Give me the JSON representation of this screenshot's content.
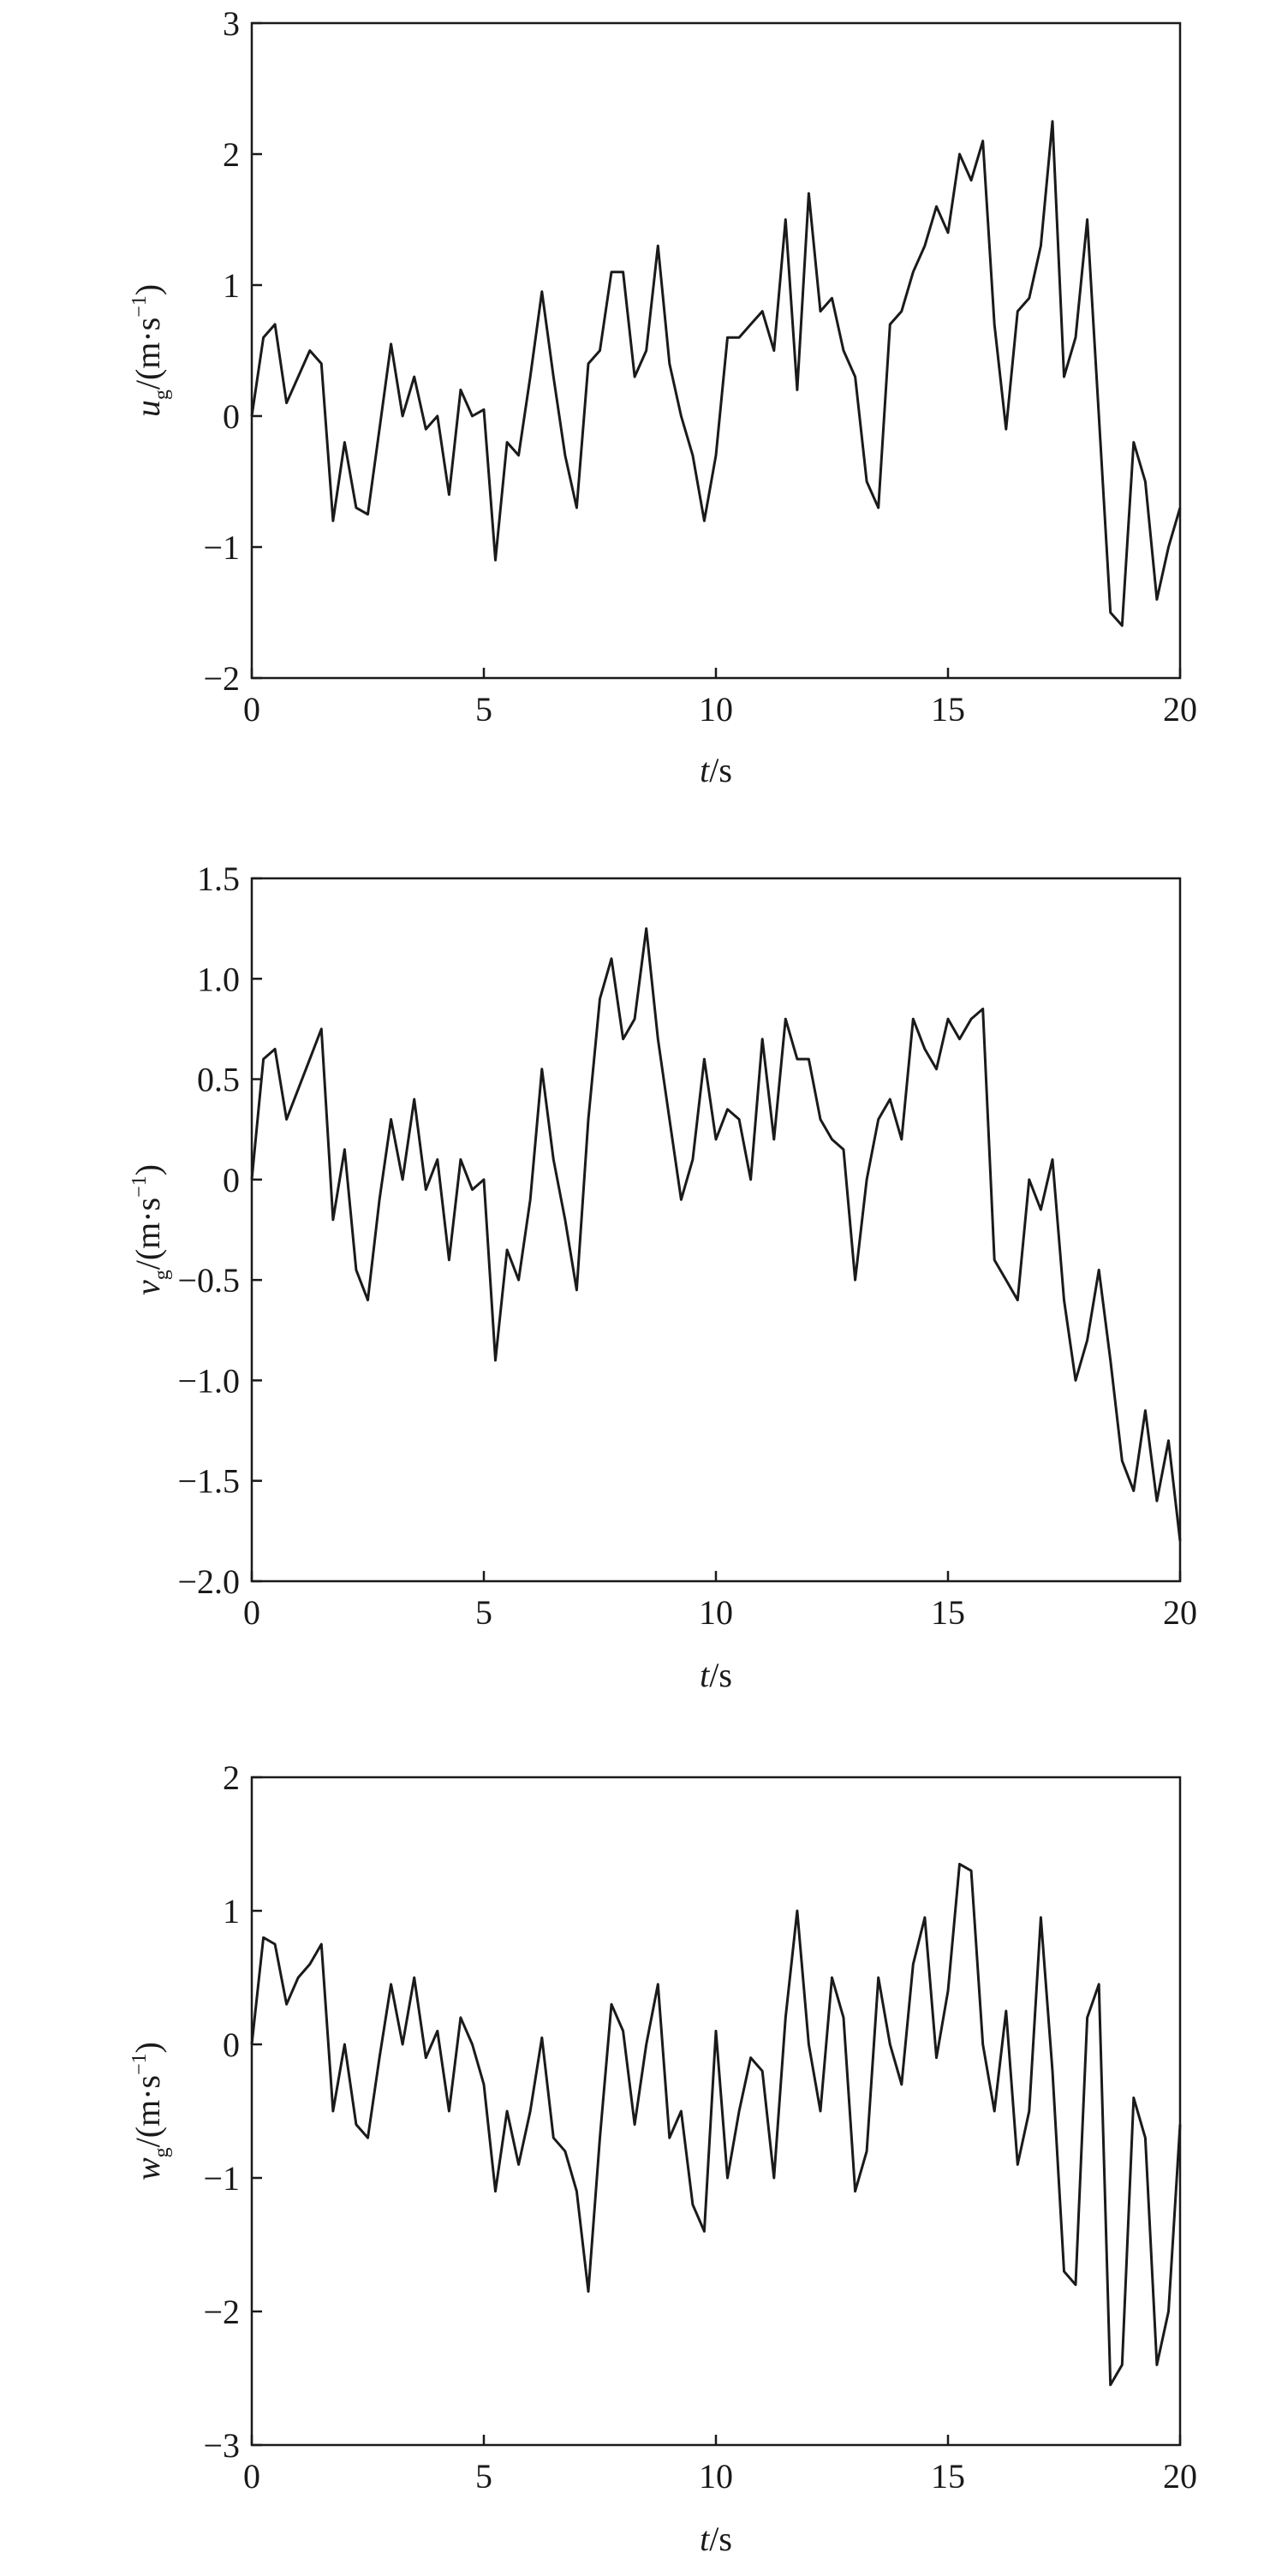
{
  "chart_data": [
    {
      "type": "line",
      "color": "#1a1a1a",
      "ylabel": [
        "u",
        "g",
        "/(m·s",
        "−1",
        ")"
      ],
      "xlabel": [
        "t",
        "/s"
      ],
      "x": [
        0,
        0.25,
        0.5,
        0.75,
        1,
        1.25,
        1.5,
        1.75,
        2,
        2.25,
        2.5,
        2.75,
        3,
        3.25,
        3.5,
        3.75,
        4,
        4.25,
        4.5,
        4.75,
        5,
        5.25,
        5.5,
        5.75,
        6,
        6.25,
        6.5,
        6.75,
        7,
        7.25,
        7.5,
        7.75,
        8,
        8.25,
        8.5,
        8.75,
        9,
        9.25,
        9.5,
        9.75,
        10,
        10.25,
        10.5,
        10.75,
        11,
        11.25,
        11.5,
        11.75,
        12,
        12.25,
        12.5,
        12.75,
        13,
        13.25,
        13.5,
        13.75,
        14,
        14.25,
        14.5,
        14.75,
        15,
        15.25,
        15.5,
        15.75,
        16,
        16.25,
        16.5,
        16.75,
        17,
        17.25,
        17.5,
        17.75,
        18,
        18.25,
        18.5,
        18.75,
        19,
        19.25,
        19.5,
        19.75,
        20
      ],
      "values": [
        0.0,
        0.6,
        0.7,
        0.1,
        0.3,
        0.5,
        0.4,
        -0.8,
        -0.2,
        -0.7,
        -0.75,
        -0.1,
        0.55,
        0.0,
        0.3,
        -0.1,
        0.0,
        -0.6,
        0.2,
        0.0,
        0.05,
        -1.1,
        -0.2,
        -0.3,
        0.3,
        0.95,
        0.3,
        -0.3,
        -0.7,
        0.4,
        0.5,
        1.1,
        1.1,
        0.3,
        0.5,
        1.3,
        0.4,
        0.0,
        -0.3,
        -0.8,
        -0.3,
        0.6,
        0.6,
        0.7,
        0.8,
        0.5,
        1.5,
        0.2,
        1.7,
        0.8,
        0.9,
        0.5,
        0.3,
        -0.5,
        -0.7,
        0.7,
        0.8,
        1.1,
        1.3,
        1.6,
        1.4,
        2.0,
        1.8,
        2.1,
        0.7,
        -0.1,
        0.8,
        0.9,
        1.3,
        2.25,
        0.3,
        0.6,
        1.5,
        0.0,
        -1.5,
        -1.6,
        -0.2,
        -0.5,
        -1.4,
        -1.0,
        -0.7
      ],
      "xlim": [
        0,
        20
      ],
      "xticks": [
        0,
        5,
        10,
        15,
        20
      ],
      "ylim": [
        -2,
        3
      ],
      "yticks": [
        {
          "value": -2,
          "label": "−2"
        },
        {
          "value": -1,
          "label": "−1"
        },
        0,
        1,
        2,
        3
      ]
    },
    {
      "type": "line",
      "color": "#1a1a1a",
      "ylabel": [
        "v",
        "g",
        "/(m·s",
        "−1",
        ")"
      ],
      "xlabel": [
        "t",
        "/s"
      ],
      "x": [
        0,
        0.25,
        0.5,
        0.75,
        1,
        1.25,
        1.5,
        1.75,
        2,
        2.25,
        2.5,
        2.75,
        3,
        3.25,
        3.5,
        3.75,
        4,
        4.25,
        4.5,
        4.75,
        5,
        5.25,
        5.5,
        5.75,
        6,
        6.25,
        6.5,
        6.75,
        7,
        7.25,
        7.5,
        7.75,
        8,
        8.25,
        8.5,
        8.75,
        9,
        9.25,
        9.5,
        9.75,
        10,
        10.25,
        10.5,
        10.75,
        11,
        11.25,
        11.5,
        11.75,
        12,
        12.25,
        12.5,
        12.75,
        13,
        13.25,
        13.5,
        13.75,
        14,
        14.25,
        14.5,
        14.75,
        15,
        15.25,
        15.5,
        15.75,
        16,
        16.25,
        16.5,
        16.75,
        17,
        17.25,
        17.5,
        17.75,
        18,
        18.25,
        18.5,
        18.75,
        19,
        19.25,
        19.5,
        19.75,
        20
      ],
      "values": [
        0.0,
        0.6,
        0.65,
        0.3,
        0.45,
        0.6,
        0.75,
        -0.2,
        0.15,
        -0.45,
        -0.6,
        -0.1,
        0.3,
        0.0,
        0.4,
        -0.05,
        0.1,
        -0.4,
        0.1,
        -0.05,
        0.0,
        -0.9,
        -0.35,
        -0.5,
        -0.1,
        0.55,
        0.1,
        -0.2,
        -0.55,
        0.3,
        0.9,
        1.1,
        0.7,
        0.8,
        1.25,
        0.7,
        0.3,
        -0.1,
        0.1,
        0.6,
        0.2,
        0.35,
        0.3,
        0.0,
        0.7,
        0.2,
        0.8,
        0.6,
        0.6,
        0.3,
        0.2,
        0.15,
        -0.5,
        0.0,
        0.3,
        0.4,
        0.2,
        0.8,
        0.65,
        0.55,
        0.8,
        0.7,
        0.8,
        0.85,
        -0.4,
        -0.5,
        -0.6,
        0.0,
        -0.15,
        0.1,
        -0.6,
        -1.0,
        -0.8,
        -0.45,
        -0.9,
        -1.4,
        -1.55,
        -1.15,
        -1.6,
        -1.3,
        -1.8
      ],
      "xlim": [
        0,
        20
      ],
      "xticks": [
        0,
        5,
        10,
        15,
        20
      ],
      "ylim": [
        -2,
        1.5
      ],
      "yticks": [
        {
          "value": -2,
          "label": "−2.0"
        },
        {
          "value": -1.5,
          "label": "−1.5"
        },
        {
          "value": -1,
          "label": "−1.0"
        },
        {
          "value": -0.5,
          "label": "−0.5"
        },
        0,
        0.5,
        {
          "value": 1,
          "label": "1.0"
        },
        1.5
      ]
    },
    {
      "type": "line",
      "color": "#1a1a1a",
      "ylabel": [
        "w",
        "g",
        "/(m·s",
        "−1",
        ")"
      ],
      "xlabel": [
        "t",
        "/s"
      ],
      "x": [
        0,
        0.25,
        0.5,
        0.75,
        1,
        1.25,
        1.5,
        1.75,
        2,
        2.25,
        2.5,
        2.75,
        3,
        3.25,
        3.5,
        3.75,
        4,
        4.25,
        4.5,
        4.75,
        5,
        5.25,
        5.5,
        5.75,
        6,
        6.25,
        6.5,
        6.75,
        7,
        7.25,
        7.5,
        7.75,
        8,
        8.25,
        8.5,
        8.75,
        9,
        9.25,
        9.5,
        9.75,
        10,
        10.25,
        10.5,
        10.75,
        11,
        11.25,
        11.5,
        11.75,
        12,
        12.25,
        12.5,
        12.75,
        13,
        13.25,
        13.5,
        13.75,
        14,
        14.25,
        14.5,
        14.75,
        15,
        15.25,
        15.5,
        15.75,
        16,
        16.25,
        16.5,
        16.75,
        17,
        17.25,
        17.5,
        17.75,
        18,
        18.25,
        18.5,
        18.75,
        19,
        19.25,
        19.5,
        19.75,
        20
      ],
      "values": [
        0.0,
        0.8,
        0.75,
        0.3,
        0.5,
        0.6,
        0.75,
        -0.5,
        0.0,
        -0.6,
        -0.7,
        -0.1,
        0.45,
        0.0,
        0.5,
        -0.1,
        0.1,
        -0.5,
        0.2,
        0.0,
        -0.3,
        -1.1,
        -0.5,
        -0.9,
        -0.5,
        0.05,
        -0.7,
        -0.8,
        -1.1,
        -1.85,
        -0.7,
        0.3,
        0.1,
        -0.6,
        0.0,
        0.45,
        -0.7,
        -0.5,
        -1.2,
        -1.4,
        0.1,
        -1.0,
        -0.5,
        -0.1,
        -0.2,
        -1.0,
        0.2,
        1.0,
        0.0,
        -0.5,
        0.5,
        0.2,
        -1.1,
        -0.8,
        0.5,
        0.0,
        -0.3,
        0.6,
        0.95,
        -0.1,
        0.4,
        1.35,
        1.3,
        0.0,
        -0.5,
        0.25,
        -0.9,
        -0.5,
        0.95,
        -0.2,
        -1.7,
        -1.8,
        0.2,
        0.45,
        -2.55,
        -2.4,
        -0.4,
        -0.7,
        -2.4,
        -2.0,
        -0.6
      ],
      "xlim": [
        0,
        20
      ],
      "xticks": [
        0,
        5,
        10,
        15,
        20
      ],
      "ylim": [
        -3,
        2
      ],
      "yticks": [
        {
          "value": -3,
          "label": "−3"
        },
        {
          "value": -2,
          "label": "−2"
        },
        {
          "value": -1,
          "label": "−1"
        },
        0,
        1,
        2
      ]
    }
  ]
}
